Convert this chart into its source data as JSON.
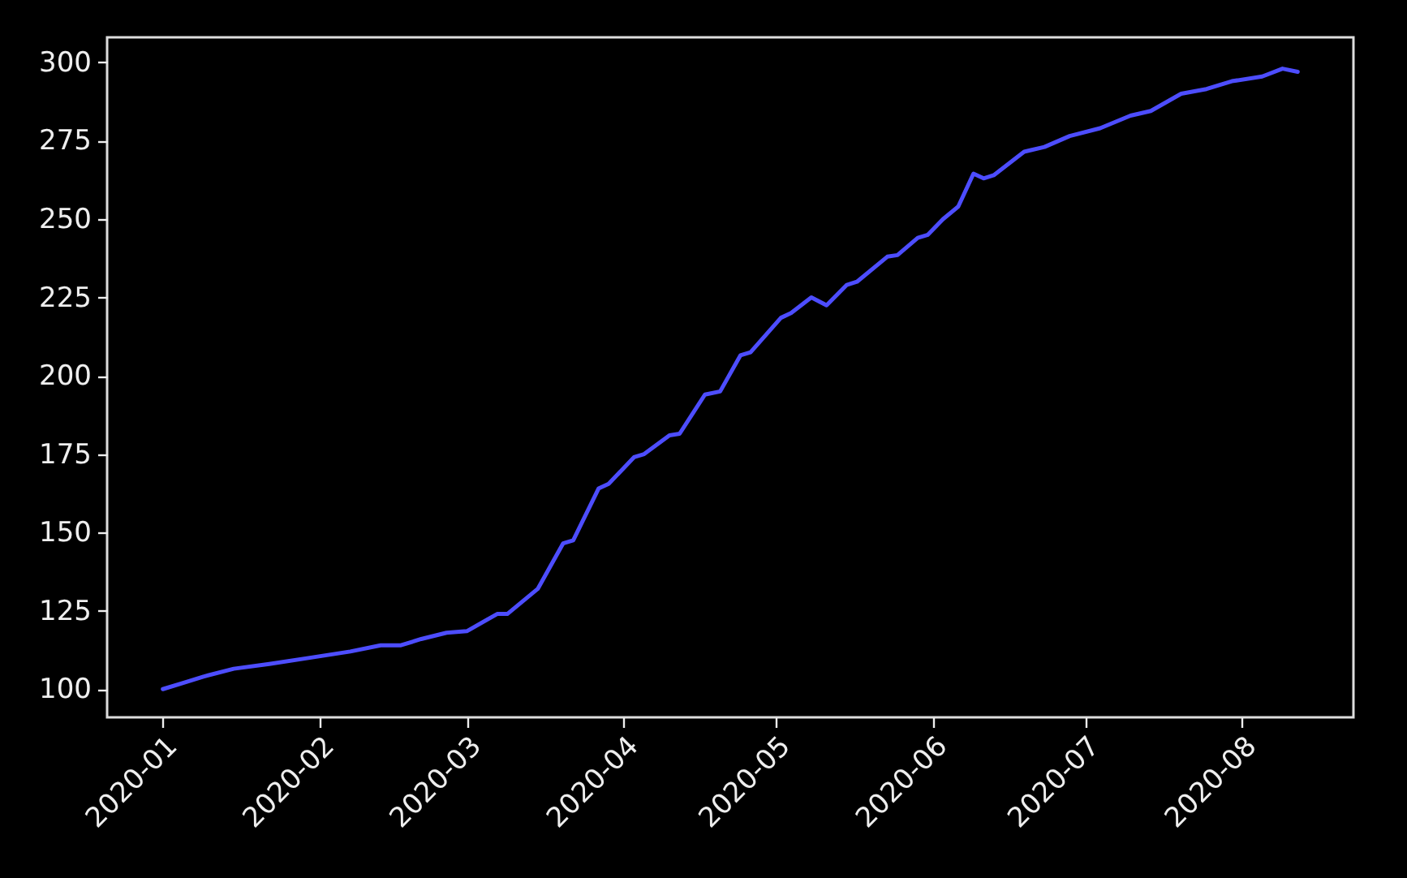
{
  "chart_data": {
    "type": "line",
    "x": [
      "2020-01-01",
      "2020-01-05",
      "2020-01-09",
      "2020-01-15",
      "2020-01-22",
      "2020-01-30",
      "2020-02-07",
      "2020-02-13",
      "2020-02-17",
      "2020-02-21",
      "2020-02-26",
      "2020-03-01",
      "2020-03-07",
      "2020-03-09",
      "2020-03-15",
      "2020-03-20",
      "2020-03-22",
      "2020-03-27",
      "2020-03-29",
      "2020-04-03",
      "2020-04-05",
      "2020-04-10",
      "2020-04-12",
      "2020-04-17",
      "2020-04-20",
      "2020-04-24",
      "2020-04-26",
      "2020-05-02",
      "2020-05-04",
      "2020-05-08",
      "2020-05-11",
      "2020-05-15",
      "2020-05-17",
      "2020-05-23",
      "2020-05-25",
      "2020-05-29",
      "2020-05-31",
      "2020-06-03",
      "2020-06-06",
      "2020-06-09",
      "2020-06-11",
      "2020-06-13",
      "2020-06-19",
      "2020-06-23",
      "2020-06-28",
      "2020-07-04",
      "2020-07-10",
      "2020-07-14",
      "2020-07-20",
      "2020-07-25",
      "2020-07-30",
      "2020-08-05",
      "2020-08-09",
      "2020-08-12"
    ],
    "series": [
      {
        "color": "#4d4dff",
        "values": [
          100,
          102,
          104,
          106.5,
          108,
          110,
          112,
          114,
          114,
          116,
          118,
          118.5,
          124,
          124,
          132,
          146.5,
          147.5,
          164,
          165.5,
          174,
          175,
          181,
          181.5,
          194,
          195,
          206.5,
          207.5,
          218.5,
          220,
          225,
          222.5,
          229,
          230,
          238,
          238.5,
          244,
          245,
          250,
          254,
          264.5,
          263,
          264,
          271.5,
          273,
          276.5,
          279,
          283,
          284.5,
          290,
          291.5,
          294,
          295.5,
          298,
          297
        ]
      }
    ],
    "xlim": [
      "2019-12-21",
      "2020-08-23"
    ],
    "xticks": [
      "2020-01",
      "2020-02",
      "2020-03",
      "2020-04",
      "2020-05",
      "2020-06",
      "2020-07",
      "2020-08"
    ],
    "ylim": [
      91,
      308
    ],
    "yticks": [
      100,
      125,
      150,
      175,
      200,
      225,
      250,
      275,
      300
    ]
  }
}
